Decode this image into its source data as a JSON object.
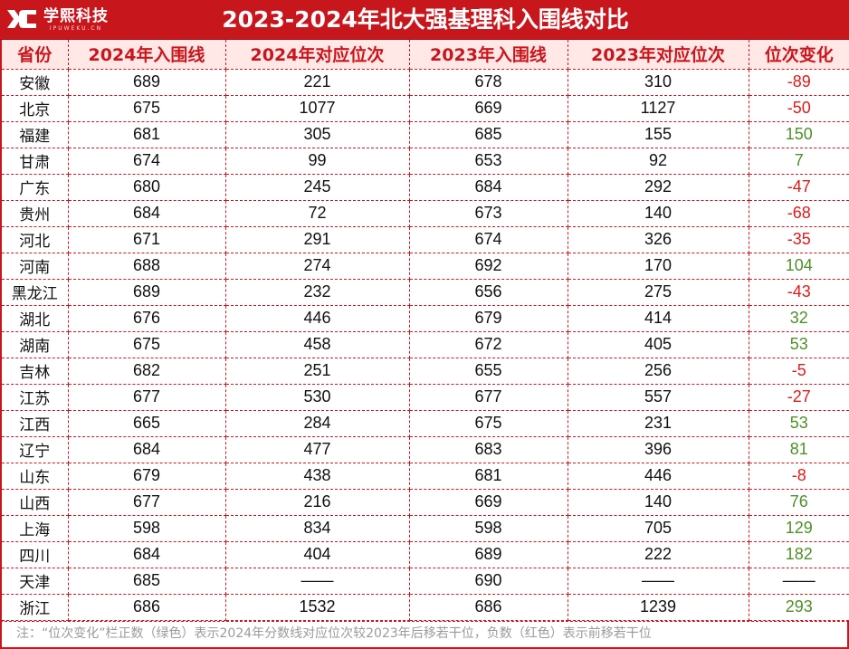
{
  "brand": {
    "logo_icon": "xc-logo-icon",
    "name": "学熙科技",
    "sub": "IPUWEKU.CN"
  },
  "title": "2023-2024年北大强基理科入围线对比",
  "columns": [
    "省份",
    "2024年入围线",
    "2024年对应位次",
    "2023年入围线",
    "2023年对应位次",
    "位次变化"
  ],
  "rows": [
    {
      "province": "安徽",
      "s2024": "689",
      "r2024": "221",
      "s2023": "678",
      "r2023": "310",
      "change": "-89"
    },
    {
      "province": "北京",
      "s2024": "675",
      "r2024": "1077",
      "s2023": "669",
      "r2023": "1127",
      "change": "-50"
    },
    {
      "province": "福建",
      "s2024": "681",
      "r2024": "305",
      "s2023": "685",
      "r2023": "155",
      "change": "150"
    },
    {
      "province": "甘肃",
      "s2024": "674",
      "r2024": "99",
      "s2023": "653",
      "r2023": "92",
      "change": "7"
    },
    {
      "province": "广东",
      "s2024": "680",
      "r2024": "245",
      "s2023": "684",
      "r2023": "292",
      "change": "-47"
    },
    {
      "province": "贵州",
      "s2024": "684",
      "r2024": "72",
      "s2023": "673",
      "r2023": "140",
      "change": "-68"
    },
    {
      "province": "河北",
      "s2024": "671",
      "r2024": "291",
      "s2023": "674",
      "r2023": "326",
      "change": "-35"
    },
    {
      "province": "河南",
      "s2024": "688",
      "r2024": "274",
      "s2023": "692",
      "r2023": "170",
      "change": "104"
    },
    {
      "province": "黑龙江",
      "s2024": "689",
      "r2024": "232",
      "s2023": "656",
      "r2023": "275",
      "change": "-43"
    },
    {
      "province": "湖北",
      "s2024": "676",
      "r2024": "446",
      "s2023": "679",
      "r2023": "414",
      "change": "32"
    },
    {
      "province": "湖南",
      "s2024": "675",
      "r2024": "458",
      "s2023": "672",
      "r2023": "405",
      "change": "53"
    },
    {
      "province": "吉林",
      "s2024": "682",
      "r2024": "251",
      "s2023": "655",
      "r2023": "256",
      "change": "-5"
    },
    {
      "province": "江苏",
      "s2024": "677",
      "r2024": "530",
      "s2023": "677",
      "r2023": "557",
      "change": "-27"
    },
    {
      "province": "江西",
      "s2024": "665",
      "r2024": "284",
      "s2023": "675",
      "r2023": "231",
      "change": "53"
    },
    {
      "province": "辽宁",
      "s2024": "684",
      "r2024": "477",
      "s2023": "683",
      "r2023": "396",
      "change": "81"
    },
    {
      "province": "山东",
      "s2024": "679",
      "r2024": "438",
      "s2023": "681",
      "r2023": "446",
      "change": "-8"
    },
    {
      "province": "山西",
      "s2024": "677",
      "r2024": "216",
      "s2023": "669",
      "r2023": "140",
      "change": "76"
    },
    {
      "province": "上海",
      "s2024": "598",
      "r2024": "834",
      "s2023": "598",
      "r2023": "705",
      "change": "129"
    },
    {
      "province": "四川",
      "s2024": "684",
      "r2024": "404",
      "s2023": "689",
      "r2023": "222",
      "change": "182"
    },
    {
      "province": "天津",
      "s2024": "685",
      "r2024": "——",
      "s2023": "690",
      "r2023": "——",
      "change": "——"
    },
    {
      "province": "浙江",
      "s2024": "686",
      "r2024": "1532",
      "s2023": "686",
      "r2023": "1239",
      "change": "293"
    }
  ],
  "colors": {
    "brand_red": "#c8161d",
    "header_bg": "#ffe8e6",
    "positive": "#4e8f28",
    "negative": "#e01919",
    "note": "#9a9a9a"
  },
  "footnote": "注：“位次变化”栏正数（绿色）表示2024年分数线对应位次较2023年后移若干位，负数（红色）表示前移若干位"
}
